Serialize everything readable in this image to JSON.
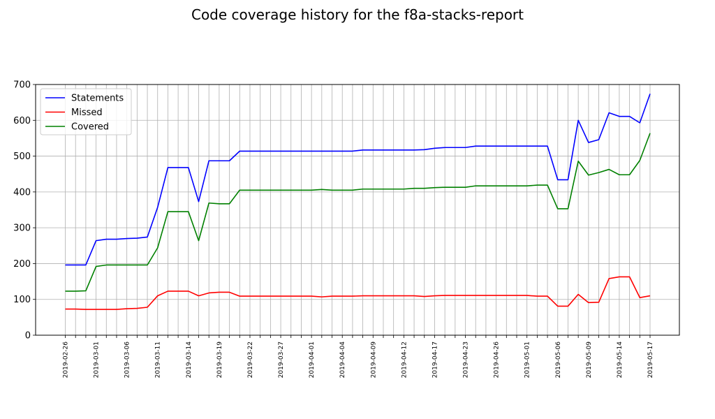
{
  "chart_data": {
    "type": "line",
    "title": "Code coverage history for the f8a-stacks-report",
    "xlabel": "",
    "ylabel": "",
    "ylim": [
      0,
      700
    ],
    "yticks": [
      0,
      100,
      200,
      300,
      400,
      500,
      600,
      700
    ],
    "grid": true,
    "legend_position": "top-left",
    "x_tick_labels": [
      "2019-02-26",
      "",
      "",
      "2019-03-01",
      "",
      "",
      "2019-03-06",
      "",
      "",
      "2019-03-11",
      "",
      "",
      "2019-03-14",
      "",
      "",
      "2019-03-19",
      "",
      "",
      "2019-03-22",
      "",
      "",
      "2019-03-27",
      "",
      "",
      "2019-04-01",
      "",
      "",
      "2019-04-04",
      "",
      "",
      "2019-04-09",
      "",
      "",
      "2019-04-12",
      "",
      "",
      "2019-04-17",
      "",
      "",
      "2019-04-23",
      "",
      "",
      "2019-04-26",
      "",
      "",
      "2019-05-01",
      "",
      "",
      "2019-05-06",
      "",
      "",
      "2019-05-09",
      "",
      "",
      "2019-05-14",
      "",
      "",
      "2019-05-17"
    ],
    "series": [
      {
        "name": "Statements",
        "color": "#0000ff",
        "values": [
          196,
          196,
          196,
          264,
          268,
          268,
          270,
          271,
          274,
          357,
          468,
          468,
          468,
          373,
          487,
          487,
          487,
          514,
          514,
          514,
          514,
          514,
          514,
          514,
          514,
          514,
          514,
          514,
          514,
          517,
          517,
          517,
          517,
          517,
          517,
          518,
          522,
          524,
          524,
          524,
          528,
          528,
          528,
          528,
          528,
          528,
          528,
          528,
          434,
          434,
          600,
          538,
          546,
          621,
          611,
          611,
          593,
          674
        ]
      },
      {
        "name": "Missed",
        "color": "#ff0000",
        "values": [
          73,
          73,
          72,
          72,
          72,
          72,
          74,
          75,
          78,
          110,
          123,
          123,
          123,
          110,
          118,
          120,
          120,
          109,
          109,
          109,
          109,
          109,
          109,
          109,
          109,
          107,
          109,
          109,
          109,
          110,
          110,
          110,
          110,
          110,
          110,
          108,
          110,
          111,
          111,
          111,
          111,
          111,
          111,
          111,
          111,
          111,
          109,
          109,
          81,
          81,
          114,
          91,
          92,
          158,
          163,
          163,
          105,
          110
        ]
      },
      {
        "name": "Covered",
        "color": "#008000",
        "values": [
          123,
          123,
          124,
          192,
          196,
          196,
          196,
          196,
          196,
          244,
          345,
          345,
          345,
          264,
          369,
          367,
          367,
          405,
          405,
          405,
          405,
          405,
          405,
          405,
          405,
          407,
          405,
          405,
          405,
          408,
          408,
          408,
          408,
          408,
          410,
          410,
          412,
          413,
          413,
          413,
          417,
          417,
          417,
          417,
          417,
          417,
          419,
          419,
          353,
          353,
          486,
          447,
          454,
          463,
          448,
          448,
          488,
          564
        ]
      }
    ]
  }
}
